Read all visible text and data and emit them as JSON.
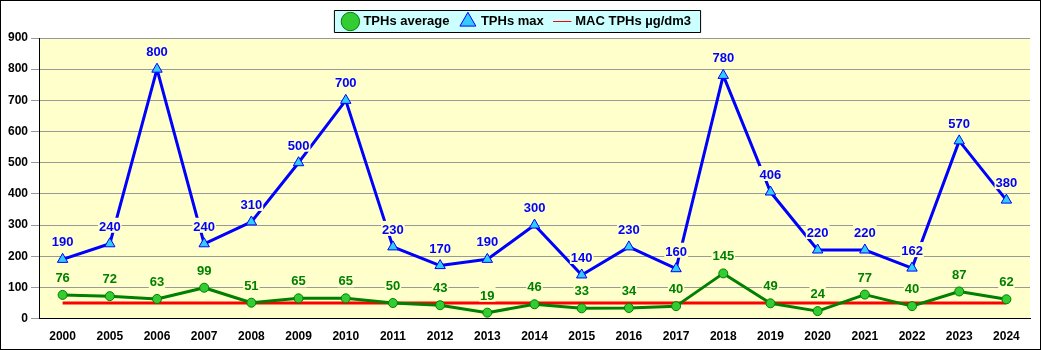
{
  "chart_data": {
    "type": "line",
    "categories": [
      "2000",
      "2005",
      "2006",
      "2007",
      "2008",
      "2009",
      "2010",
      "2011",
      "2012",
      "2013",
      "2014",
      "2015",
      "2016",
      "2017",
      "2018",
      "2019",
      "2020",
      "2021",
      "2022",
      "2023",
      "2024"
    ],
    "series": [
      {
        "name": "TPHs average",
        "color": "#008000",
        "marker": "circle",
        "values": [
          76,
          72,
          63,
          99,
          51,
          65,
          65,
          50,
          43,
          19,
          46,
          33,
          34,
          40,
          145,
          49,
          24,
          77,
          40,
          87,
          62
        ],
        "value_labels": [
          "76",
          "72",
          "63",
          "99",
          "51",
          "65",
          "65",
          "50",
          "43",
          "19",
          "46",
          "33",
          "34",
          "40",
          "145",
          "49",
          "24",
          "77",
          "40",
          "87",
          "62"
        ]
      },
      {
        "name": "TPHs max",
        "color": "#0000ff",
        "marker": "triangle",
        "values": [
          190,
          240,
          800,
          240,
          310,
          500,
          700,
          230,
          170,
          190,
          300,
          140,
          230,
          160,
          780,
          406,
          220,
          220,
          162,
          570,
          380
        ],
        "value_labels": [
          "190",
          "240",
          "800",
          "240",
          "310",
          "500",
          "700",
          "230",
          "170",
          "190",
          "300",
          "140",
          "230",
          "160",
          "780",
          "406",
          "220",
          "220",
          "162",
          "570",
          "380"
        ]
      },
      {
        "name": "MAC TPHs µg/dm3",
        "color": "#ff0000",
        "marker": "none",
        "values": [
          50,
          50,
          50,
          50,
          50,
          50,
          50,
          50,
          50,
          50,
          50,
          50,
          50,
          50,
          50,
          50,
          50,
          50,
          50,
          50,
          50
        ]
      }
    ],
    "ylim": [
      0,
      900
    ],
    "yticks": [
      0,
      100,
      200,
      300,
      400,
      500,
      600,
      700,
      800,
      900
    ],
    "grid": "y",
    "legend": "top",
    "line_style": "solid"
  }
}
